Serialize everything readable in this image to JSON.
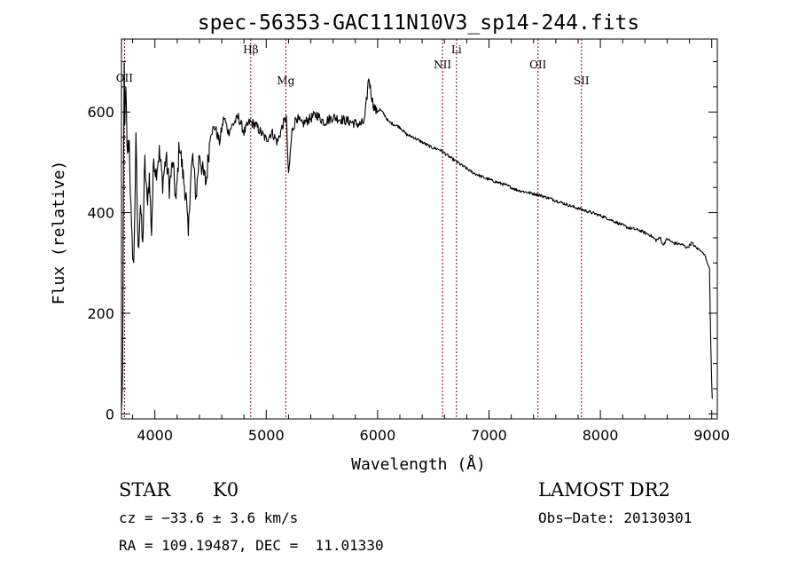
{
  "chart_data": {
    "type": "line",
    "title": "spec-56353-GAC111N10V3_sp14-244.fits",
    "xlabel": "Wavelength (Å)",
    "ylabel": "Flux (relative)",
    "xlim": [
      3700,
      9050
    ],
    "ylim": [
      -10,
      745
    ],
    "xticks": [
      4000,
      5000,
      6000,
      7000,
      8000,
      9000
    ],
    "yticks": [
      0,
      200,
      400,
      600
    ],
    "grid": false,
    "legend": "none",
    "line_color": "#000000",
    "line_marker_color": "#8b0000",
    "series": [
      {
        "x": [
          3700,
          3710,
          3720,
          3725,
          3730,
          3740,
          3750,
          3770,
          3790,
          3810,
          3830,
          3850,
          3870,
          3890,
          3910,
          3930,
          3950,
          3970,
          3990,
          4010,
          4040,
          4070,
          4100,
          4130,
          4160,
          4190,
          4220,
          4250,
          4280,
          4300,
          4320,
          4340,
          4370,
          4400,
          4430,
          4460,
          4500,
          4540,
          4580,
          4620,
          4660,
          4700,
          4750,
          4800,
          4850,
          4900,
          4950,
          5000,
          5050,
          5100,
          5150,
          5180,
          5200,
          5230,
          5270,
          5320,
          5380,
          5450,
          5520,
          5600,
          5680,
          5760,
          5840,
          5880,
          5900,
          5920,
          5940,
          5960,
          5990,
          6020,
          6060,
          6100,
          6150,
          6200,
          6260,
          6320,
          6400,
          6480,
          6560,
          6650,
          6750,
          6850,
          6950,
          7050,
          7150,
          7250,
          7350,
          7450,
          7550,
          7650,
          7750,
          7850,
          7950,
          8050,
          8150,
          8250,
          8350,
          8450,
          8500,
          8540,
          8560,
          8600,
          8650,
          8700,
          8740,
          8780,
          8820,
          8860,
          8900,
          8940,
          8960,
          8980,
          8990,
          9000,
          9005
        ],
        "y": [
          0,
          80,
          530,
          690,
          590,
          640,
          520,
          540,
          360,
          290,
          540,
          320,
          420,
          330,
          500,
          420,
          470,
          360,
          510,
          480,
          520,
          460,
          510,
          450,
          500,
          420,
          540,
          480,
          430,
          350,
          470,
          510,
          430,
          520,
          480,
          460,
          560,
          570,
          540,
          590,
          560,
          575,
          590,
          560,
          580,
          575,
          560,
          545,
          560,
          540,
          575,
          590,
          470,
          560,
          590,
          575,
          585,
          595,
          580,
          590,
          585,
          580,
          575,
          580,
          620,
          670,
          640,
          615,
          600,
          605,
          595,
          580,
          575,
          570,
          555,
          550,
          540,
          530,
          525,
          510,
          495,
          480,
          470,
          462,
          455,
          445,
          440,
          435,
          428,
          420,
          412,
          405,
          398,
          390,
          380,
          370,
          365,
          355,
          345,
          350,
          335,
          348,
          340,
          338,
          336,
          330,
          340,
          330,
          325,
          315,
          300,
          290,
          150,
          60,
          30
        ]
      }
    ],
    "line_markers": [
      {
        "wavelength": 3727,
        "label": "OII"
      },
      {
        "wavelength": 4861,
        "label": "Hβ"
      },
      {
        "wavelength": 5175,
        "label": "Mg"
      },
      {
        "wavelength": 6583,
        "label": "NII"
      },
      {
        "wavelength": 6708,
        "label": "Li"
      },
      {
        "wavelength": 7440,
        "label": "OII"
      },
      {
        "wavelength": 7830,
        "label": "SII"
      }
    ]
  },
  "footer": {
    "class_label": "STAR",
    "subclass_label": "K0",
    "survey": "LAMOST DR2",
    "cz": "cz = −33.6 ± 3.6 km/s",
    "obs_date": "Obs−Date: 20130301",
    "radec": "RA = 109.19487, DEC =  11.01330"
  }
}
